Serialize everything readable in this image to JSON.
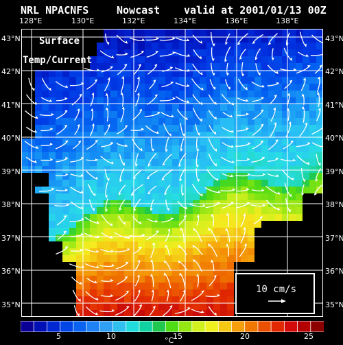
{
  "header": {
    "model": "NRL NPACNFS",
    "product": "Nowcast",
    "valid": "valid at 2001/01/13 00Z"
  },
  "map_label": {
    "line1": "Surface",
    "line2": "Temp/Current"
  },
  "lon_labels": [
    "128°E",
    "130°E",
    "132°E",
    "134°E",
    "136°E",
    "138°E"
  ],
  "lat_labels_left": [
    "43°N",
    "42°N",
    "41°N",
    "40°N",
    "39°N",
    "38°N",
    "37°N",
    "36°N",
    "35°N"
  ],
  "lat_labels_right": [
    "43°N",
    "42°N",
    "41°N",
    "40°N",
    "39°N",
    "38°N",
    "37°N",
    "36°N",
    "35°N"
  ],
  "reference_vector": {
    "label": "10 cm/s"
  },
  "colorbar": {
    "unit": "°C",
    "ticks": [
      "5",
      "10",
      "15",
      "20",
      "25"
    ],
    "colors": [
      "#0a0096",
      "#0010b4",
      "#0028d2",
      "#0046e6",
      "#0a64f0",
      "#1e82f5",
      "#30a0f5",
      "#30c0f0",
      "#20dcdc",
      "#10d2a0",
      "#20c850",
      "#50dc14",
      "#96e614",
      "#d2f01e",
      "#f0f01e",
      "#f5c814",
      "#f5a00a",
      "#f07800",
      "#eb5000",
      "#e12800",
      "#d20a0a",
      "#b40000",
      "#8c0000"
    ]
  },
  "colors": {
    "background": "#000000",
    "land": "#000000",
    "grid": "#ffffff",
    "arrows": "#ffffff"
  }
}
